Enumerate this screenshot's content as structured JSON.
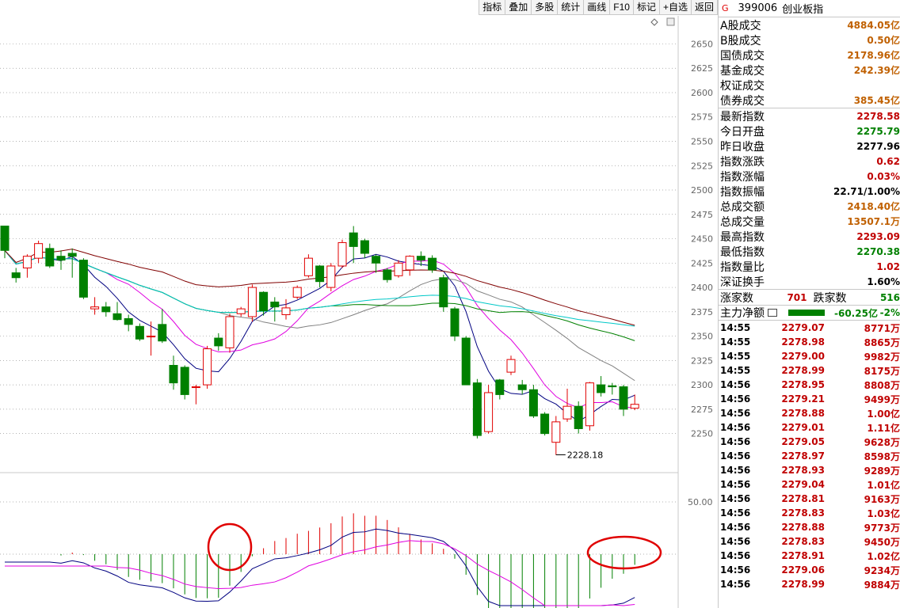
{
  "toolbar": [
    "指标",
    "叠加",
    "多股",
    "统计",
    "画线",
    "F10",
    "标记",
    "+自选",
    "返回"
  ],
  "header": {
    "marker": "G",
    "code": "399006",
    "name": "创业板指"
  },
  "turnover": [
    {
      "label": "A股成交",
      "value": "4884.05亿"
    },
    {
      "label": "B股成交",
      "value": "0.50亿"
    },
    {
      "label": "国债成交",
      "value": "2178.96亿"
    },
    {
      "label": "基金成交",
      "value": "242.39亿"
    },
    {
      "label": "权证成交",
      "value": ""
    },
    {
      "label": "债券成交",
      "value": "385.45亿"
    }
  ],
  "quote": [
    {
      "label": "最新指数",
      "value": "2278.58",
      "color": "red"
    },
    {
      "label": "今日开盘",
      "value": "2275.79",
      "color": "green"
    },
    {
      "label": "昨日收盘",
      "value": "2277.96",
      "color": "black"
    },
    {
      "label": "指数涨跌",
      "value": "0.62",
      "color": "red"
    },
    {
      "label": "指数涨幅",
      "value": "0.03%",
      "color": "red"
    },
    {
      "label": "指数振幅",
      "value": "22.71/1.00%",
      "color": "black"
    },
    {
      "label": "总成交额",
      "value": "2418.40亿",
      "color": "brown"
    },
    {
      "label": "总成交量",
      "value": "13507.1万",
      "color": "brown"
    },
    {
      "label": "最高指数",
      "value": "2293.09",
      "color": "red"
    },
    {
      "label": "最低指数",
      "value": "2270.38",
      "color": "green"
    },
    {
      "label": "指数量比",
      "value": "1.02",
      "color": "red"
    },
    {
      "label": "深证换手",
      "value": "1.60%",
      "color": "black"
    }
  ],
  "breadth": {
    "up_label": "涨家数",
    "up": "701",
    "down_label": "跌家数",
    "down": "516"
  },
  "mainflow": {
    "label": "主力净额",
    "value": "-60.25亿",
    "pct": "-2%"
  },
  "ticks": [
    [
      "14:55",
      "2279.07",
      "8771万"
    ],
    [
      "14:55",
      "2278.98",
      "8865万"
    ],
    [
      "14:55",
      "2279.00",
      "9982万"
    ],
    [
      "14:55",
      "2278.99",
      "8175万"
    ],
    [
      "14:56",
      "2278.95",
      "8808万"
    ],
    [
      "14:56",
      "2279.21",
      "9499万"
    ],
    [
      "14:56",
      "2278.88",
      "1.00亿"
    ],
    [
      "14:56",
      "2279.01",
      "1.11亿"
    ],
    [
      "14:56",
      "2279.05",
      "9628万"
    ],
    [
      "14:56",
      "2278.97",
      "8598万"
    ],
    [
      "14:56",
      "2278.93",
      "9289万"
    ],
    [
      "14:56",
      "2279.04",
      "1.01亿"
    ],
    [
      "14:56",
      "2278.81",
      "9163万"
    ],
    [
      "14:56",
      "2278.83",
      "1.03亿"
    ],
    [
      "14:56",
      "2278.88",
      "9773万"
    ],
    [
      "14:56",
      "2278.83",
      "9450万"
    ],
    [
      "14:56",
      "2278.91",
      "1.02亿"
    ],
    [
      "14:56",
      "2279.06",
      "9234万"
    ],
    [
      "14:56",
      "2278.99",
      "9884万"
    ]
  ],
  "chart_data": {
    "type": "candlestick",
    "y_ticks": [
      2650,
      2625,
      2600,
      2575,
      2550,
      2525,
      2500,
      2475,
      2450,
      2425,
      2400,
      2375,
      2350,
      2325,
      2300,
      2275,
      2250
    ],
    "ylim": [
      2218,
      2665
    ],
    "low_annotation": "2228.18",
    "sub_tick": "50.00",
    "candles": [
      [
        2463,
        2438,
        2460,
        2430
      ],
      [
        2415,
        2410,
        2420,
        2405
      ],
      [
        2420,
        2432,
        2434,
        2410
      ],
      [
        2430,
        2445,
        2448,
        2425
      ],
      [
        2440,
        2422,
        2445,
        2420
      ],
      [
        2432,
        2428,
        2438,
        2418
      ],
      [
        2435,
        2432,
        2440,
        2410
      ],
      [
        2428,
        2390,
        2430,
        2388
      ],
      [
        2378,
        2380,
        2390,
        2372
      ],
      [
        2380,
        2375,
        2385,
        2370
      ],
      [
        2373,
        2367,
        2385,
        2366
      ],
      [
        2368,
        2362,
        2372,
        2355
      ],
      [
        2360,
        2347,
        2363,
        2345
      ],
      [
        2350,
        2350,
        2365,
        2330
      ],
      [
        2362,
        2345,
        2378,
        2343
      ],
      [
        2320,
        2302,
        2330,
        2295
      ],
      [
        2318,
        2290,
        2320,
        2285
      ],
      [
        2298,
        2298,
        2300,
        2280
      ],
      [
        2300,
        2337,
        2340,
        2296
      ],
      [
        2348,
        2340,
        2353,
        2335
      ],
      [
        2338,
        2370,
        2373,
        2333
      ],
      [
        2373,
        2378,
        2380,
        2370
      ],
      [
        2370,
        2400,
        2403,
        2365
      ],
      [
        2395,
        2376,
        2396,
        2371
      ],
      [
        2385,
        2380,
        2390,
        2365
      ],
      [
        2372,
        2379,
        2388,
        2367
      ],
      [
        2390,
        2400,
        2402,
        2388
      ],
      [
        2412,
        2430,
        2434,
        2410
      ],
      [
        2422,
        2406,
        2423,
        2400
      ],
      [
        2400,
        2422,
        2425,
        2396
      ],
      [
        2422,
        2446,
        2449,
        2420
      ],
      [
        2456,
        2442,
        2463,
        2425
      ],
      [
        2448,
        2435,
        2450,
        2430
      ],
      [
        2432,
        2425,
        2434,
        2415
      ],
      [
        2418,
        2408,
        2420,
        2405
      ],
      [
        2412,
        2425,
        2428,
        2410
      ],
      [
        2418,
        2432,
        2433,
        2412
      ],
      [
        2432,
        2428,
        2437,
        2422
      ],
      [
        2430,
        2418,
        2433,
        2415
      ],
      [
        2410,
        2380,
        2413,
        2375
      ],
      [
        2378,
        2350,
        2380,
        2345
      ],
      [
        2348,
        2300,
        2350,
        2300
      ],
      [
        2302,
        2248,
        2306,
        2245
      ],
      [
        2252,
        2292,
        2300,
        2250
      ],
      [
        2305,
        2290,
        2306,
        2285
      ],
      [
        2313,
        2326,
        2330,
        2310
      ],
      [
        2300,
        2295,
        2305,
        2290
      ],
      [
        2295,
        2268,
        2300,
        2266
      ],
      [
        2270,
        2250,
        2272,
        2248
      ],
      [
        2241,
        2262,
        2268,
        2228
      ],
      [
        2265,
        2278,
        2296,
        2262
      ],
      [
        2278,
        2255,
        2283,
        2250
      ],
      [
        2258,
        2302,
        2303,
        2253
      ],
      [
        2300,
        2292,
        2309,
        2288
      ],
      [
        2299,
        2298,
        2302,
        2290
      ],
      [
        2298,
        2275,
        2300,
        2268
      ],
      [
        2276,
        2280,
        2290,
        2274
      ]
    ]
  }
}
